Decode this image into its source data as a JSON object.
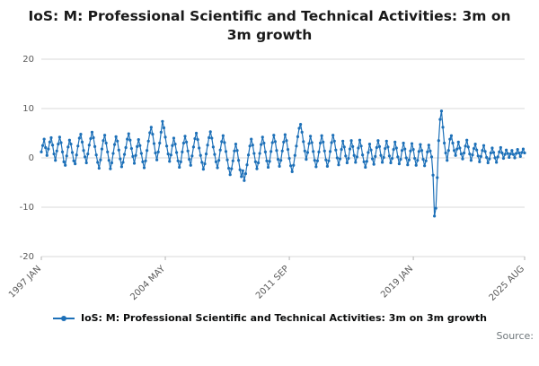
{
  "chart_data": {
    "type": "line",
    "title": "IoS: M: Professional Scientific and Technical Activities: 3m on 3m growth",
    "xlabel": "",
    "ylabel": "",
    "ylim": [
      -20,
      20
    ],
    "y_ticks": [
      20,
      10,
      0,
      -10,
      -20
    ],
    "grid": true,
    "legend_position": "bottom",
    "marker": "circle",
    "accent_color": "#1d70b8",
    "grid_color": "#d9d9d9",
    "tick_label_color": "#595959",
    "x_ticks": [
      {
        "label": "1997 JAN",
        "index": 0
      },
      {
        "label": "2004 MAY",
        "index": 88
      },
      {
        "label": "2011 SEP",
        "index": 176
      },
      {
        "label": "2019 JAN",
        "index": 264
      },
      {
        "label": "2025 AUG",
        "index": 343
      }
    ],
    "series": [
      {
        "name": "IoS: M: Professional Scientific and Technical Activities: 3m on 3m growth",
        "color": "#1d70b8",
        "values": [
          1.2,
          2.5,
          3.8,
          2.1,
          0.5,
          1.8,
          3.2,
          4.1,
          2.6,
          0.8,
          -0.5,
          1.4,
          2.8,
          4.2,
          3.1,
          1.2,
          -0.8,
          -1.5,
          0.4,
          2.2,
          3.6,
          2.8,
          1.1,
          -0.6,
          -1.2,
          0.6,
          2.4,
          4.0,
          4.8,
          3.2,
          1.5,
          0.2,
          -1.0,
          0.8,
          2.6,
          3.9,
          5.2,
          4.1,
          2.3,
          0.6,
          -0.9,
          -2.1,
          -0.4,
          1.8,
          3.5,
          4.6,
          3.0,
          1.2,
          -0.5,
          -2.2,
          -1.0,
          0.9,
          2.7,
          4.3,
          3.4,
          1.6,
          -0.2,
          -1.8,
          -0.9,
          0.7,
          2.1,
          3.8,
          4.9,
          3.6,
          1.9,
          0.3,
          -1.1,
          0.5,
          2.3,
          3.7,
          2.5,
          0.9,
          -0.8,
          -2.0,
          -0.6,
          1.5,
          3.4,
          5.1,
          6.2,
          4.8,
          2.9,
          1.0,
          -0.4,
          1.2,
          3.0,
          5.2,
          7.4,
          6.1,
          4.2,
          2.4,
          0.8,
          -0.7,
          0.6,
          2.5,
          4.0,
          2.8,
          1.1,
          -0.6,
          -1.9,
          -0.8,
          1.2,
          3.0,
          4.4,
          3.2,
          1.4,
          -0.3,
          -1.5,
          0.4,
          2.2,
          3.9,
          5.0,
          3.7,
          2.0,
          0.5,
          -0.9,
          -2.3,
          -1.2,
          0.8,
          2.6,
          4.1,
          5.3,
          4.0,
          2.2,
          0.7,
          -0.8,
          -2.0,
          -0.5,
          1.6,
          3.3,
          4.5,
          3.1,
          1.3,
          -0.4,
          -2.1,
          -3.4,
          -2.2,
          -0.6,
          1.4,
          2.8,
          1.5,
          -0.5,
          -2.4,
          -3.8,
          -2.6,
          -4.6,
          -3.2,
          -1.4,
          0.6,
          2.4,
          3.8,
          2.6,
          0.9,
          -0.8,
          -2.2,
          -1.0,
          0.9,
          2.7,
          4.2,
          3.0,
          1.2,
          -0.6,
          -1.9,
          -0.7,
          1.3,
          3.1,
          4.6,
          3.3,
          1.5,
          -0.3,
          -1.7,
          -0.5,
          1.4,
          3.2,
          4.7,
          3.5,
          1.7,
          -0.1,
          -1.6,
          -2.8,
          -1.5,
          0.5,
          2.4,
          4.3,
          6.0,
          6.8,
          5.2,
          3.3,
          1.4,
          -0.3,
          1.1,
          2.9,
          4.4,
          3.1,
          1.3,
          -0.5,
          -1.8,
          -0.6,
          1.2,
          3.0,
          4.5,
          3.2,
          1.4,
          -0.4,
          -1.7,
          -0.6,
          1.3,
          3.1,
          4.6,
          3.4,
          1.6,
          0.0,
          -1.4,
          -0.2,
          1.7,
          3.4,
          2.2,
          0.4,
          -1.0,
          -0.1,
          1.8,
          3.5,
          2.3,
          0.5,
          -0.9,
          0.2,
          2.0,
          3.6,
          2.4,
          0.6,
          -0.8,
          -1.9,
          -0.7,
          1.1,
          2.8,
          1.6,
          -0.2,
          -1.3,
          0.3,
          2.1,
          3.5,
          2.3,
          0.5,
          -0.9,
          0.1,
          1.9,
          3.4,
          2.2,
          0.4,
          -1.0,
          -0.1,
          1.7,
          3.2,
          2.0,
          0.2,
          -1.2,
          -0.3,
          1.5,
          3.0,
          1.8,
          0.0,
          -1.4,
          -0.4,
          1.4,
          2.9,
          1.7,
          -0.1,
          -1.5,
          -0.5,
          1.3,
          2.7,
          1.5,
          -0.3,
          -1.6,
          -0.6,
          1.2,
          2.6,
          1.4,
          0.2,
          -3.5,
          -11.8,
          -10.2,
          -4.0,
          3.5,
          7.8,
          9.5,
          6.2,
          3.0,
          1.0,
          -0.5,
          1.5,
          3.8,
          4.5,
          3.0,
          1.5,
          0.5,
          1.8,
          3.2,
          2.0,
          0.8,
          -0.2,
          1.0,
          2.4,
          3.6,
          2.2,
          0.8,
          -0.5,
          0.6,
          1.9,
          2.8,
          1.6,
          0.4,
          -0.8,
          0.3,
          1.5,
          2.5,
          1.3,
          0.1,
          -1.0,
          -0.2,
          1.0,
          2.0,
          1.1,
          0.0,
          -0.9,
          0.2,
          1.2,
          2.1,
          1.0,
          -0.1,
          0.7,
          1.6,
          0.9,
          0.1,
          0.8,
          1.5,
          0.7,
          0.0,
          0.9,
          1.7,
          1.0,
          0.3,
          1.1,
          1.8,
          1.0
        ]
      }
    ]
  },
  "legend": {
    "label": "IoS: M: Professional Scientific and Technical Activities: 3m on 3m growth"
  },
  "source": {
    "label": "Source:"
  }
}
